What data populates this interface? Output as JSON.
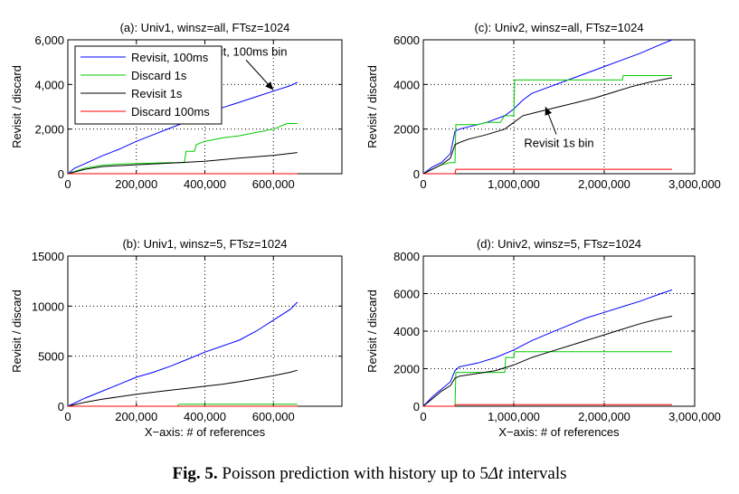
{
  "caption": {
    "label": "Fig. 5.",
    "text_before": "Poisson prediction with history up to 5",
    "symbol": "Δt",
    "text_after": " intervals"
  },
  "colors": {
    "revisit_100ms": "#0000ff",
    "discard_1s": "#00cc00",
    "revisit_1s": "#000000",
    "discard_100ms": "#ff0000"
  },
  "chart_data": [
    {
      "id": "a",
      "type": "line",
      "title": "(a): Univ1, winsz=all, FTsz=1024",
      "xlabel": "",
      "ylabel": "Revisit / discard",
      "xlim": [
        0,
        800000
      ],
      "ylim": [
        0,
        6000
      ],
      "xticks": [
        0,
        200000,
        400000,
        600000
      ],
      "xtick_labels": [
        "0",
        "200,000",
        "400,000",
        "600,000"
      ],
      "yticks": [
        0,
        2000,
        4000,
        6000
      ],
      "ytick_labels": [
        "0",
        "2,000",
        "4,000",
        "6,000"
      ],
      "grid": true,
      "legend": "top-left",
      "series": [
        {
          "name": "Revisit, 100ms",
          "color": "#0000ff",
          "x": [
            0,
            20000,
            50000,
            100000,
            150000,
            200000,
            250000,
            300000,
            350000,
            400000,
            450000,
            500000,
            550000,
            600000,
            650000,
            670000
          ],
          "y": [
            0,
            250,
            450,
            800,
            1100,
            1450,
            1750,
            2050,
            2350,
            2650,
            2950,
            3200,
            3450,
            3700,
            3950,
            4100
          ]
        },
        {
          "name": "Discard 1s",
          "color": "#00cc00",
          "x": [
            0,
            20000,
            50000,
            100000,
            150000,
            200000,
            250000,
            300000,
            340000,
            345000,
            370000,
            375000,
            400000,
            450000,
            500000,
            550000,
            600000,
            640000,
            670000
          ],
          "y": [
            0,
            100,
            250,
            380,
            430,
            460,
            480,
            500,
            500,
            1000,
            1000,
            1300,
            1450,
            1600,
            1700,
            1850,
            2000,
            2250,
            2250
          ]
        },
        {
          "name": "Revisit 1s",
          "color": "#000000",
          "x": [
            0,
            50000,
            100000,
            200000,
            300000,
            400000,
            500000,
            600000,
            670000
          ],
          "y": [
            0,
            200,
            320,
            400,
            480,
            560,
            700,
            820,
            950
          ]
        },
        {
          "name": "Discard 100ms",
          "color": "#ff0000",
          "x": [
            0,
            670000
          ],
          "y": [
            0,
            0
          ]
        }
      ],
      "annotations": [
        {
          "text": "Revisit, 100ms bin",
          "x": 500000,
          "y": 5300,
          "arrow_to": [
            600000,
            3750
          ]
        }
      ]
    },
    {
      "id": "c",
      "type": "line",
      "title": "(c): Univ2, winsz=all, FTsz=1024",
      "xlabel": "",
      "ylabel": "Revisit / discard",
      "xlim": [
        0,
        3000000
      ],
      "ylim": [
        0,
        6000
      ],
      "xticks": [
        0,
        1000000,
        2000000,
        3000000
      ],
      "xtick_labels": [
        "0",
        "1,000,000",
        "2,000,000",
        "3,000,000"
      ],
      "yticks": [
        0,
        2000,
        4000,
        6000
      ],
      "ytick_labels": [
        "0",
        "2000",
        "4000",
        "6000"
      ],
      "grid": true,
      "legend": "none",
      "series": [
        {
          "name": "Revisit, 100ms",
          "color": "#0000ff",
          "x": [
            0,
            100000,
            200000,
            300000,
            350000,
            400000,
            500000,
            700000,
            900000,
            1000000,
            1100000,
            1200000,
            1400000,
            1600000,
            1800000,
            2000000,
            2200000,
            2400000,
            2600000,
            2750000
          ],
          "y": [
            0,
            300,
            500,
            900,
            1900,
            2000,
            2100,
            2300,
            2600,
            2900,
            3300,
            3600,
            3900,
            4200,
            4500,
            4800,
            5100,
            5400,
            5750,
            6000
          ]
        },
        {
          "name": "Discard 1s",
          "color": "#00cc00",
          "x": [
            0,
            100000,
            200000,
            300000,
            350000,
            360000,
            600000,
            700000,
            850000,
            900000,
            1000000,
            1010000,
            2200000,
            2210000,
            2750000
          ],
          "y": [
            0,
            200,
            400,
            500,
            500,
            2200,
            2200,
            2300,
            2300,
            2600,
            2600,
            4200,
            4200,
            4400,
            4400
          ]
        },
        {
          "name": "Revisit 1s",
          "color": "#000000",
          "x": [
            0,
            100000,
            200000,
            300000,
            350000,
            400000,
            500000,
            700000,
            900000,
            1000000,
            1100000,
            1300000,
            1500000,
            1700000,
            1900000,
            2100000,
            2300000,
            2500000,
            2750000
          ],
          "y": [
            0,
            200,
            400,
            700,
            1300,
            1400,
            1550,
            1750,
            2000,
            2300,
            2600,
            2800,
            3000,
            3200,
            3400,
            3650,
            3900,
            4100,
            4300
          ]
        },
        {
          "name": "Discard 100ms",
          "color": "#ff0000",
          "x": [
            0,
            350000,
            360000,
            2750000
          ],
          "y": [
            0,
            0,
            200,
            200
          ]
        }
      ],
      "annotations": [
        {
          "text": "Revisit 1s bin",
          "x": 1500000,
          "y": 1200,
          "arrow_to": [
            1350000,
            3000
          ]
        }
      ]
    },
    {
      "id": "b",
      "type": "line",
      "title": "(b): Univ1, winsz=5, FTsz=1024",
      "xlabel": "X−axis: # of references",
      "ylabel": "Revisit / discard",
      "xlim": [
        0,
        800000
      ],
      "ylim": [
        0,
        15000
      ],
      "xticks": [
        0,
        200000,
        400000,
        600000
      ],
      "xtick_labels": [
        "0",
        "200,000",
        "400,000",
        "600,000"
      ],
      "yticks": [
        0,
        5000,
        10000,
        15000
      ],
      "ytick_labels": [
        "0",
        "5000",
        "10000",
        "15000"
      ],
      "grid": true,
      "legend": "none",
      "series": [
        {
          "name": "Revisit, 100ms",
          "color": "#0000ff",
          "x": [
            0,
            50000,
            100000,
            150000,
            200000,
            250000,
            300000,
            350000,
            400000,
            450000,
            500000,
            550000,
            600000,
            650000,
            670000
          ],
          "y": [
            0,
            800,
            1500,
            2200,
            2900,
            3400,
            4000,
            4700,
            5400,
            6000,
            6600,
            7500,
            8600,
            9700,
            10400
          ]
        },
        {
          "name": "Discard 1s",
          "color": "#00cc00",
          "x": [
            0,
            320000,
            325000,
            670000
          ],
          "y": [
            0,
            0,
            200,
            200
          ]
        },
        {
          "name": "Revisit 1s",
          "color": "#000000",
          "x": [
            0,
            50000,
            100000,
            150000,
            200000,
            250000,
            300000,
            350000,
            400000,
            450000,
            500000,
            550000,
            600000,
            650000,
            670000
          ],
          "y": [
            0,
            400,
            700,
            950,
            1200,
            1400,
            1600,
            1800,
            2000,
            2200,
            2450,
            2750,
            3050,
            3400,
            3600
          ]
        },
        {
          "name": "Discard 100ms",
          "color": "#ff0000",
          "x": [
            0,
            670000
          ],
          "y": [
            0,
            0
          ]
        }
      ],
      "annotations": []
    },
    {
      "id": "d",
      "type": "line",
      "title": "(d): Univ2, winsz=5, FTsz=1024",
      "xlabel": "X−axis: # of references",
      "ylabel": "Revisit / discard",
      "xlim": [
        0,
        3000000
      ],
      "ylim": [
        0,
        8000
      ],
      "xticks": [
        0,
        1000000,
        2000000,
        3000000
      ],
      "xtick_labels": [
        "0",
        "1,000,000",
        "2,000,000",
        "3,000,000"
      ],
      "yticks": [
        0,
        2000,
        4000,
        6000,
        8000
      ],
      "ytick_labels": [
        "0",
        "2000",
        "4000",
        "6000",
        "8000"
      ],
      "grid": true,
      "legend": "none",
      "series": [
        {
          "name": "Revisit, 100ms",
          "color": "#0000ff",
          "x": [
            0,
            100000,
            200000,
            300000,
            350000,
            400000,
            600000,
            800000,
            1000000,
            1200000,
            1400000,
            1600000,
            1800000,
            2000000,
            2200000,
            2400000,
            2600000,
            2750000
          ],
          "y": [
            0,
            500,
            900,
            1300,
            1900,
            2100,
            2300,
            2600,
            3000,
            3500,
            3900,
            4300,
            4700,
            5000,
            5300,
            5600,
            5950,
            6200
          ]
        },
        {
          "name": "Discard 1s",
          "color": "#00cc00",
          "x": [
            0,
            350000,
            360000,
            900000,
            910000,
            1000000,
            1010000,
            2750000
          ],
          "y": [
            0,
            0,
            1800,
            1800,
            2600,
            2600,
            2900,
            2900
          ]
        },
        {
          "name": "Revisit 1s",
          "color": "#000000",
          "x": [
            0,
            100000,
            200000,
            300000,
            350000,
            400000,
            600000,
            800000,
            1000000,
            1200000,
            1400000,
            1600000,
            1800000,
            2000000,
            2200000,
            2400000,
            2600000,
            2750000
          ],
          "y": [
            0,
            400,
            800,
            1100,
            1500,
            1600,
            1750,
            1900,
            2200,
            2600,
            2900,
            3200,
            3500,
            3800,
            4100,
            4400,
            4650,
            4800
          ]
        },
        {
          "name": "Discard 100ms",
          "color": "#ff0000",
          "x": [
            0,
            350000,
            360000,
            2750000
          ],
          "y": [
            0,
            0,
            80,
            80
          ]
        }
      ],
      "annotations": []
    }
  ]
}
